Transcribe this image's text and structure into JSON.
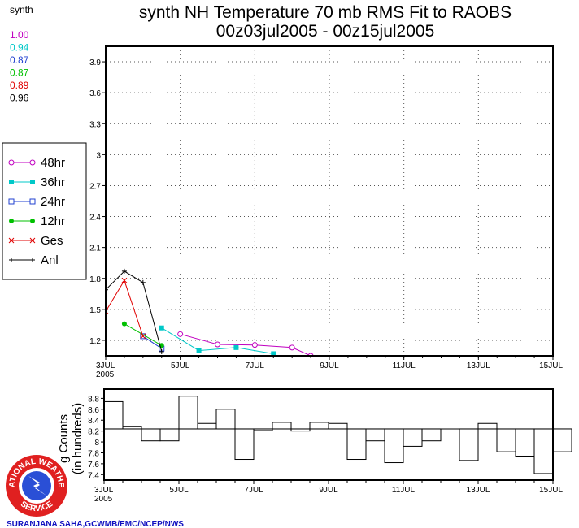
{
  "chart_data": [
    {
      "type": "line",
      "title": "synth NH Temperature 70 mb RMS Fit to RAOBS",
      "subtitle": "00z03jul2005 - 00z15jul2005",
      "x_ticks": [
        {
          "day": 3,
          "label": "3JUL",
          "sublabel": "2005"
        },
        {
          "day": 5,
          "label": "5JUL"
        },
        {
          "day": 7,
          "label": "7JUL"
        },
        {
          "day": 9,
          "label": "9JUL"
        },
        {
          "day": 11,
          "label": "11JUL"
        },
        {
          "day": 13,
          "label": "13JUL"
        },
        {
          "day": 15,
          "label": "15JUL"
        }
      ],
      "xlim": [
        3,
        15
      ],
      "ylim": [
        1.05,
        4.05
      ],
      "y_ticks": [
        {
          "v": 1.2,
          "label": "1.2"
        },
        {
          "v": 1.5,
          "label": "1.5"
        },
        {
          "v": 1.8,
          "label": "1.8"
        },
        {
          "v": 2.1,
          "label": "2.1"
        },
        {
          "v": 2.4,
          "label": "2.4"
        },
        {
          "v": 2.7,
          "label": "2.7"
        },
        {
          "v": 3.0,
          "label": "3"
        },
        {
          "v": 3.3,
          "label": "3.3"
        },
        {
          "v": 3.6,
          "label": "3.6"
        },
        {
          "v": 3.9,
          "label": "3.9"
        }
      ],
      "grid": true,
      "series": [
        {
          "name": "48hr",
          "color": "#c000c0",
          "marker": "open-circle",
          "x": [
            5.0,
            6.0,
            7.0,
            8.0,
            8.5
          ],
          "y": [
            1.26,
            1.16,
            1.155,
            1.13,
            1.05
          ]
        },
        {
          "name": "36hr",
          "color": "#00c8c8",
          "marker": "filled-square",
          "x": [
            4.5,
            5.5,
            6.5,
            7.5
          ],
          "y": [
            1.32,
            1.1,
            1.13,
            1.07
          ]
        },
        {
          "name": "24hr",
          "color": "#2040d0",
          "marker": "open-square",
          "x": [
            4.0,
            4.5
          ],
          "y": [
            1.24,
            1.12
          ]
        },
        {
          "name": "12hr",
          "color": "#00c000",
          "marker": "filled-circle",
          "x": [
            3.5,
            4.5
          ],
          "y": [
            1.36,
            1.15
          ]
        },
        {
          "name": "Ges",
          "color": "#e00000",
          "marker": "x",
          "x": [
            3.0,
            3.5,
            4.0
          ],
          "y": [
            1.48,
            1.78,
            1.24
          ]
        },
        {
          "name": "Anl",
          "color": "#000000",
          "marker": "plus",
          "x": [
            3.0,
            3.5,
            4.0,
            4.5
          ],
          "y": [
            1.69,
            1.87,
            1.76,
            1.09
          ]
        }
      ],
      "stats": {
        "header": "synth",
        "items": [
          {
            "value": "1.00",
            "color": "#c000c0"
          },
          {
            "value": "0.94",
            "color": "#00c8c8"
          },
          {
            "value": "0.87",
            "color": "#2040d0"
          },
          {
            "value": "0.87",
            "color": "#00c000"
          },
          {
            "value": "0.89",
            "color": "#e00000"
          },
          {
            "value": "0.96",
            "color": "#000000"
          }
        ]
      },
      "legend_position": "left"
    },
    {
      "type": "bar",
      "ylabel": "Counts",
      "ylabel_prefix_visible": "g",
      "ylabel2": "(in hundreds)",
      "xlim": [
        3,
        15
      ],
      "ylim": [
        7.3,
        8.97
      ],
      "baseline": 8.24,
      "y_ticks": [
        {
          "v": 7.4,
          "label": "7.4"
        },
        {
          "v": 7.6,
          "label": "7.6"
        },
        {
          "v": 7.8,
          "label": "7.8"
        },
        {
          "v": 8.0,
          "label": "8"
        },
        {
          "v": 8.2,
          "label": "8.2"
        },
        {
          "v": 8.4,
          "label": "8.4"
        },
        {
          "v": 8.6,
          "label": "8.6"
        },
        {
          "v": 8.8,
          "label": "8.8"
        }
      ],
      "x_ticks": [
        {
          "day": 3,
          "label": "3JUL",
          "sublabel": "2005"
        },
        {
          "day": 5,
          "label": "5JUL"
        },
        {
          "day": 7,
          "label": "7JUL"
        },
        {
          "day": 9,
          "label": "9JUL"
        },
        {
          "day": 11,
          "label": "11JUL"
        },
        {
          "day": 13,
          "label": "13JUL"
        },
        {
          "day": 15,
          "label": "15JUL"
        }
      ],
      "bin_days": 0.5,
      "values": [
        8.74,
        8.28,
        8.02,
        8.02,
        8.84,
        8.34,
        8.6,
        7.68,
        8.21,
        8.36,
        8.2,
        8.36,
        8.34,
        7.68,
        8.02,
        7.62,
        7.92,
        8.02,
        0,
        7.66,
        8.34,
        7.82,
        7.74,
        7.42,
        7.82
      ]
    }
  ],
  "credit": "SURANJANA SAHA,GCWMB/EMC/NCEP/NWS",
  "logo_text": {
    "top": "NATIONAL WEATHER",
    "bottom": "SERVICE"
  }
}
